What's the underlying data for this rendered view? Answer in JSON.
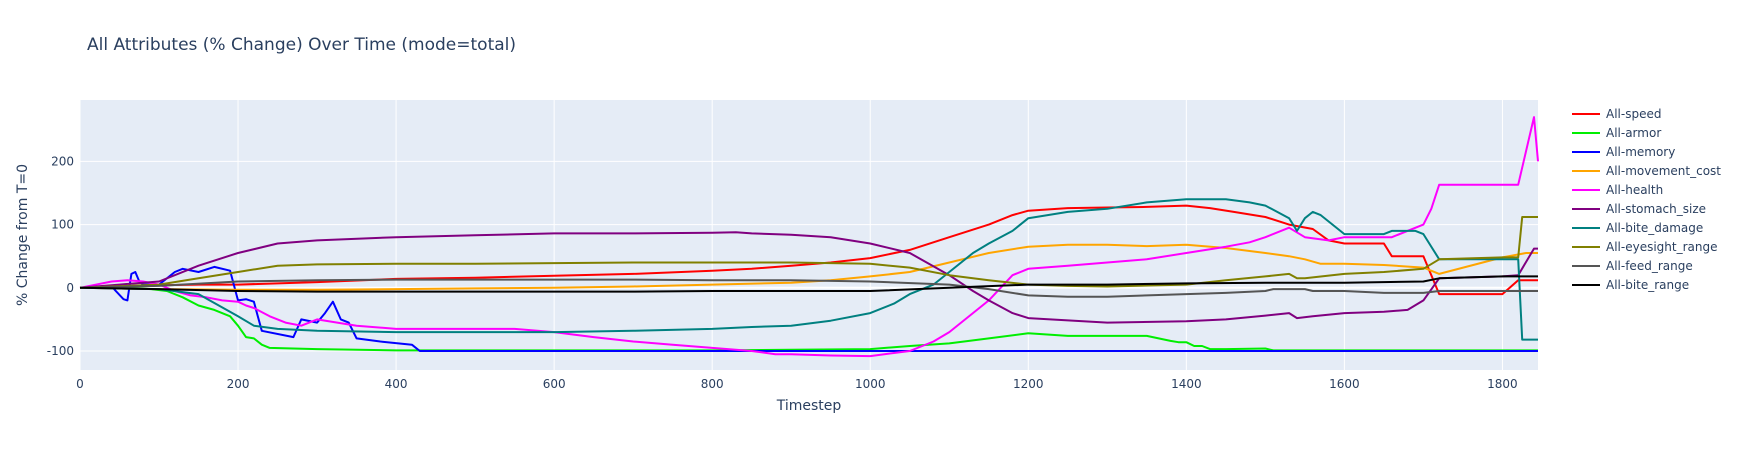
{
  "chart_data": {
    "type": "line",
    "title": "All Attributes (% Change) Over Time (mode=total)",
    "xlabel": "Timestep",
    "ylabel": "% Change from T=0",
    "xlim": [
      0,
      1845
    ],
    "ylim": [
      -130,
      297
    ],
    "xticks": [
      0,
      200,
      400,
      600,
      800,
      1000,
      1200,
      1400,
      1600,
      1800
    ],
    "yticks": [
      -100,
      0,
      100,
      200
    ],
    "grid": true,
    "background": "#e5ecf6",
    "legend_position": "right",
    "series": [
      {
        "name": "All-speed",
        "color": "#ff0000",
        "x": [
          0,
          60,
          100,
          150,
          200,
          300,
          400,
          500,
          600,
          700,
          800,
          850,
          900,
          950,
          1000,
          1050,
          1100,
          1150,
          1180,
          1200,
          1250,
          1300,
          1350,
          1400,
          1430,
          1460,
          1500,
          1530,
          1560,
          1580,
          1600,
          1650,
          1660,
          1700,
          1720,
          1800,
          1820,
          1845
        ],
        "y": [
          0,
          2,
          4,
          5,
          5,
          9,
          14,
          16,
          19,
          22,
          27,
          30,
          35,
          40,
          47,
          60,
          80,
          100,
          115,
          122,
          126,
          127,
          128,
          130,
          126,
          120,
          112,
          100,
          93,
          75,
          70,
          70,
          50,
          50,
          -10,
          -10,
          12,
          12
        ]
      },
      {
        "name": "All-armor",
        "color": "#00ee00",
        "x": [
          0,
          60,
          90,
          110,
          130,
          150,
          170,
          190,
          200,
          210,
          220,
          230,
          240,
          300,
          400,
          500,
          600,
          700,
          800,
          900,
          1000,
          1050,
          1100,
          1150,
          1200,
          1250,
          1300,
          1350,
          1380,
          1390,
          1400,
          1410,
          1420,
          1430,
          1450,
          1500,
          1510,
          1600,
          1700,
          1720,
          1845
        ],
        "y": [
          0,
          0,
          -2,
          -5,
          -15,
          -28,
          -35,
          -45,
          -60,
          -78,
          -80,
          -90,
          -95,
          -97,
          -99,
          -99,
          -99,
          -99,
          -99,
          -98,
          -97,
          -92,
          -88,
          -80,
          -72,
          -76,
          -76,
          -76,
          -84,
          -86,
          -86,
          -92,
          -92,
          -97,
          -97,
          -96,
          -99,
          -99,
          -99,
          -99,
          -99
        ]
      },
      {
        "name": "All-memory",
        "color": "#0000ff",
        "x": [
          0,
          40,
          55,
          60,
          65,
          70,
          75,
          80,
          100,
          120,
          130,
          150,
          170,
          190,
          200,
          210,
          220,
          225,
          230,
          270,
          280,
          300,
          310,
          320,
          330,
          340,
          350,
          380,
          420,
          430,
          500,
          600,
          700,
          800,
          900,
          1000,
          1200,
          1400,
          1600,
          1800,
          1845
        ],
        "y": [
          0,
          2,
          -18,
          -20,
          22,
          25,
          10,
          5,
          5,
          25,
          30,
          25,
          33,
          27,
          -20,
          -18,
          -22,
          -45,
          -68,
          -78,
          -50,
          -55,
          -40,
          -22,
          -50,
          -55,
          -80,
          -85,
          -90,
          -100,
          -100,
          -100,
          -100,
          -100,
          -100,
          -100,
          -100,
          -100,
          -100,
          -100,
          -100
        ]
      },
      {
        "name": "All-movement_cost",
        "color": "#ffa500",
        "x": [
          0,
          100,
          200,
          300,
          400,
          500,
          600,
          700,
          800,
          900,
          950,
          1000,
          1050,
          1100,
          1150,
          1200,
          1250,
          1300,
          1350,
          1400,
          1450,
          1500,
          1530,
          1550,
          1570,
          1600,
          1650,
          1700,
          1720,
          1800,
          1830,
          1845
        ],
        "y": [
          0,
          -2,
          -3,
          -3,
          -2,
          -1,
          0,
          2,
          5,
          8,
          12,
          18,
          25,
          40,
          55,
          65,
          68,
          68,
          66,
          68,
          63,
          55,
          50,
          45,
          38,
          38,
          36,
          32,
          22,
          48,
          55,
          55
        ]
      },
      {
        "name": "All-health",
        "color": "#ff00ff",
        "x": [
          0,
          40,
          60,
          80,
          100,
          120,
          140,
          160,
          180,
          200,
          210,
          220,
          240,
          260,
          280,
          300,
          350,
          400,
          500,
          550,
          600,
          650,
          700,
          750,
          800,
          850,
          880,
          900,
          950,
          1000,
          1050,
          1080,
          1100,
          1150,
          1180,
          1200,
          1250,
          1300,
          1350,
          1400,
          1450,
          1480,
          1500,
          1530,
          1550,
          1580,
          1600,
          1660,
          1700,
          1710,
          1720,
          1800,
          1820,
          1840,
          1845
        ],
        "y": [
          0,
          10,
          12,
          10,
          5,
          -5,
          -12,
          -15,
          -20,
          -22,
          -28,
          -32,
          -45,
          -55,
          -60,
          -50,
          -60,
          -65,
          -65,
          -65,
          -70,
          -78,
          -85,
          -90,
          -95,
          -100,
          -105,
          -105,
          -107,
          -108,
          -100,
          -85,
          -70,
          -20,
          20,
          30,
          35,
          40,
          45,
          55,
          65,
          72,
          80,
          95,
          80,
          75,
          80,
          80,
          100,
          125,
          163,
          163,
          163,
          270,
          200
        ]
      },
      {
        "name": "All-stomach_size",
        "color": "#800080",
        "x": [
          0,
          50,
          100,
          150,
          200,
          250,
          300,
          400,
          500,
          600,
          700,
          800,
          830,
          850,
          900,
          950,
          1000,
          1050,
          1100,
          1130,
          1150,
          1180,
          1200,
          1300,
          1400,
          1450,
          1500,
          1530,
          1540,
          1560,
          1600,
          1650,
          1680,
          1700,
          1720,
          1800,
          1820,
          1840,
          1845
        ],
        "y": [
          0,
          5,
          10,
          35,
          55,
          70,
          75,
          80,
          83,
          86,
          86,
          87,
          88,
          86,
          84,
          80,
          70,
          55,
          20,
          -5,
          -20,
          -40,
          -48,
          -55,
          -53,
          -50,
          -44,
          -40,
          -48,
          -45,
          -40,
          -38,
          -35,
          -20,
          15,
          18,
          20,
          62,
          62
        ]
      },
      {
        "name": "All-bite_damage",
        "color": "#008080",
        "x": [
          0,
          100,
          150,
          200,
          220,
          250,
          300,
          400,
          500,
          600,
          700,
          800,
          850,
          900,
          950,
          1000,
          1030,
          1050,
          1080,
          1100,
          1130,
          1150,
          1180,
          1200,
          1250,
          1300,
          1350,
          1400,
          1450,
          1480,
          1500,
          1530,
          1540,
          1550,
          1560,
          1570,
          1600,
          1650,
          1660,
          1690,
          1700,
          1720,
          1800,
          1820,
          1825,
          1845
        ],
        "y": [
          0,
          -2,
          -10,
          -45,
          -60,
          -65,
          -68,
          -70,
          -70,
          -70,
          -68,
          -65,
          -62,
          -60,
          -52,
          -40,
          -25,
          -10,
          5,
          25,
          55,
          70,
          90,
          110,
          120,
          125,
          135,
          140,
          140,
          135,
          130,
          110,
          90,
          110,
          120,
          115,
          85,
          85,
          90,
          90,
          85,
          45,
          45,
          45,
          -82,
          -82
        ]
      },
      {
        "name": "All-eyesight_range",
        "color": "#808000",
        "x": [
          0,
          100,
          150,
          200,
          250,
          300,
          400,
          500,
          600,
          700,
          800,
          900,
          1000,
          1050,
          1100,
          1150,
          1200,
          1250,
          1300,
          1400,
          1450,
          1500,
          1530,
          1540,
          1550,
          1600,
          1650,
          1700,
          1720,
          1800,
          1820,
          1825,
          1840,
          1845
        ],
        "y": [
          0,
          5,
          15,
          25,
          35,
          37,
          38,
          38,
          39,
          40,
          40,
          40,
          38,
          32,
          20,
          12,
          5,
          3,
          2,
          5,
          12,
          18,
          22,
          15,
          15,
          22,
          25,
          30,
          45,
          48,
          48,
          112,
          112,
          112
        ]
      },
      {
        "name": "All-feed_range",
        "color": "#555555",
        "x": [
          0,
          100,
          200,
          300,
          400,
          500,
          600,
          700,
          800,
          900,
          1000,
          1100,
          1150,
          1200,
          1250,
          1300,
          1400,
          1450,
          1500,
          1510,
          1550,
          1560,
          1600,
          1650,
          1700,
          1720,
          1800,
          1845
        ],
        "y": [
          0,
          3,
          10,
          12,
          13,
          13,
          13,
          13,
          12,
          12,
          10,
          5,
          -2,
          -12,
          -14,
          -14,
          -10,
          -8,
          -5,
          -2,
          -2,
          -5,
          -5,
          -8,
          -8,
          -5,
          -5,
          -5
        ]
      },
      {
        "name": "All-bite_range",
        "color": "#000000",
        "x": [
          0,
          100,
          200,
          300,
          400,
          500,
          600,
          700,
          800,
          900,
          1000,
          1100,
          1200,
          1300,
          1400,
          1500,
          1600,
          1700,
          1720,
          1800,
          1845
        ],
        "y": [
          0,
          -2,
          -5,
          -6,
          -6,
          -6,
          -6,
          -6,
          -5,
          -5,
          -5,
          0,
          5,
          5,
          7,
          8,
          8,
          10,
          15,
          18,
          18
        ]
      }
    ]
  }
}
